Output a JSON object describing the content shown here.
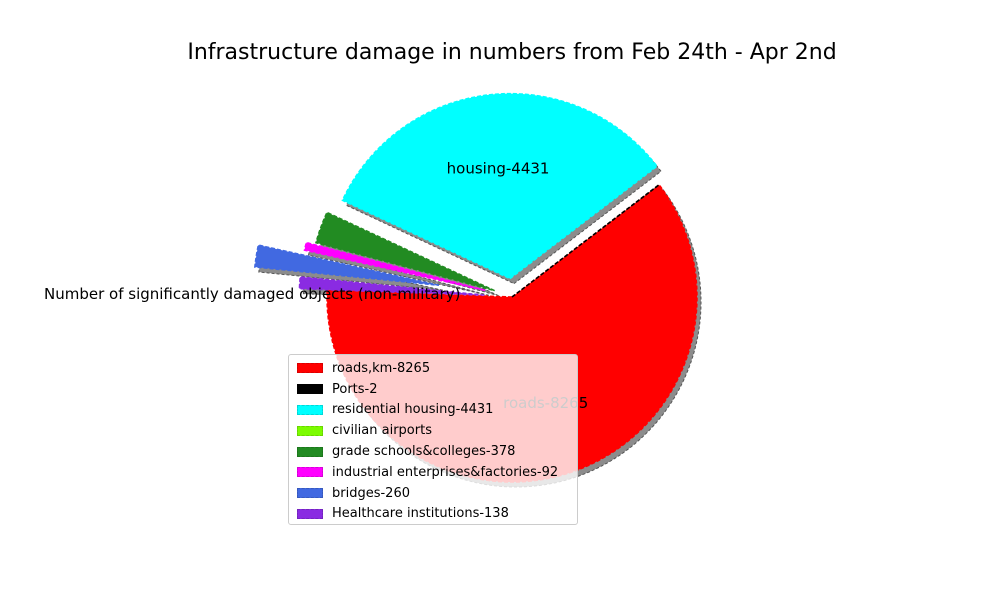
{
  "chart_data": {
    "type": "pie",
    "title": "Infrastructure damage in numbers from Feb 24th - Apr 2nd",
    "ylabel": "Number of significantly damaged objects (non-military)",
    "categories": [
      "roads,km-8265",
      "Ports-2",
      "residential housing-4431",
      "civilian airports",
      "grade schools&colleges-378",
      "industrial enterprises&factories-92",
      "bridges-260",
      "Healthcare institutions-138"
    ],
    "values": [
      8265,
      2,
      4431,
      0,
      378,
      92,
      260,
      138
    ],
    "colors": [
      "#ff0000",
      "#000000",
      "#00ffff",
      "#7cfc00",
      "#228b22",
      "#ff00ff",
      "#4169e1",
      "#8a2be2"
    ],
    "explode": [
      0,
      0,
      0.1,
      0,
      0.1,
      0.15,
      0.4,
      0.15
    ],
    "slice_labels": [
      "roads-8265",
      "",
      "housing-4431",
      "",
      "",
      "",
      "",
      ""
    ],
    "shadow": true,
    "legend_loc": "lower-left"
  }
}
